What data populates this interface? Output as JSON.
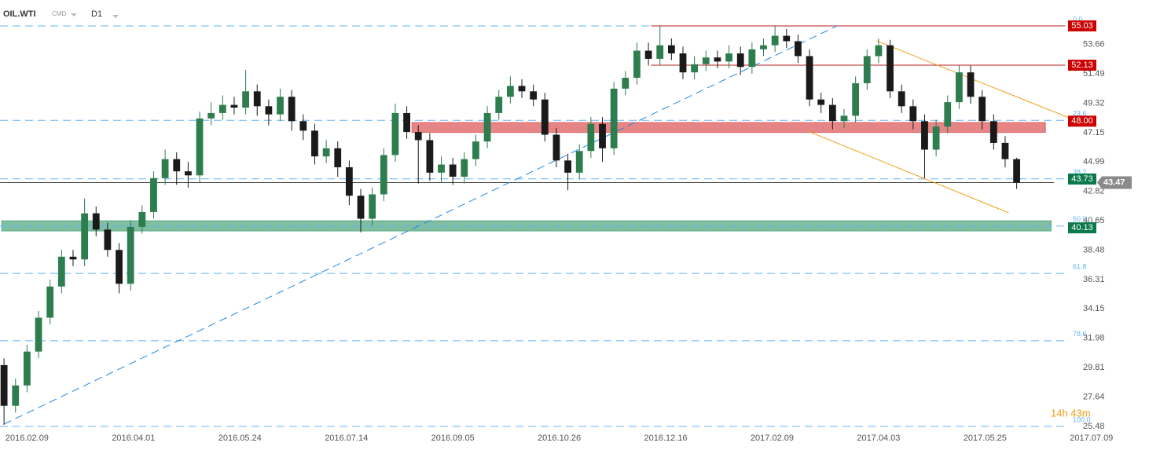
{
  "chart_data": {
    "type": "candlestick",
    "symbol": "OIL.WTI",
    "market": "CMD",
    "timeframe": "D1",
    "countdown": "14h 43m",
    "up_color": "#2e7d4f",
    "down_color": "#1a1a1a",
    "x": [
      0,
      4,
      8,
      12,
      16,
      20,
      24,
      28,
      32,
      36,
      40,
      44,
      48,
      52,
      56,
      60,
      64,
      68,
      72,
      76,
      80,
      84,
      88,
      92,
      96,
      100,
      104,
      108,
      112,
      116,
      120,
      124,
      128,
      132,
      136,
      140,
      144,
      148,
      152,
      156,
      160,
      164,
      168,
      172,
      176,
      180,
      184,
      188,
      192,
      196,
      200,
      204,
      208,
      212,
      216,
      220,
      224,
      228,
      232,
      236,
      240,
      244,
      248,
      252,
      256,
      260,
      264,
      268,
      272,
      276,
      280,
      284,
      288,
      292,
      296,
      300,
      304,
      308,
      312,
      316,
      320,
      324,
      328,
      332,
      336,
      340,
      344,
      348,
      352
    ],
    "open": [
      30.0,
      27.0,
      28.5,
      31.0,
      33.5,
      35.8,
      38.0,
      37.8,
      41.2,
      40.0,
      38.5,
      36.0,
      40.2,
      41.3,
      43.8,
      45.2,
      44.3,
      44.0,
      48.2,
      48.6,
      49.2,
      49.0,
      50.2,
      49.1,
      48.5,
      49.8,
      48.0,
      47.3,
      45.4,
      46.0,
      44.6,
      42.5,
      40.8,
      42.6,
      45.5,
      48.6,
      47.2,
      46.6,
      44.2,
      44.8,
      43.9,
      45.2,
      46.5,
      48.6,
      49.8,
      50.6,
      50.2,
      49.6,
      47.0,
      45.1,
      44.2,
      45.8,
      47.8,
      46.0,
      50.4,
      51.2,
      53.2,
      52.6,
      53.6,
      53.0,
      51.6,
      52.2,
      52.7,
      52.4,
      53.0,
      52.0,
      53.3,
      53.6,
      54.3,
      53.9,
      52.8,
      49.6,
      49.2,
      48.0,
      48.4,
      50.8,
      52.8,
      53.6,
      50.2,
      49.1,
      48.0,
      45.9,
      47.6,
      49.4,
      51.6,
      49.8,
      48.0,
      46.4,
      45.2
    ],
    "high": [
      30.5,
      29.0,
      31.5,
      34.0,
      36.3,
      38.5,
      38.5,
      42.3,
      41.7,
      40.5,
      39.0,
      40.7,
      41.8,
      44.3,
      45.9,
      45.7,
      45.0,
      48.7,
      49.4,
      49.9,
      49.8,
      51.8,
      50.7,
      49.6,
      50.4,
      50.3,
      48.5,
      47.8,
      46.6,
      46.5,
      45.1,
      43.0,
      43.1,
      46.0,
      49.3,
      49.1,
      47.7,
      47.1,
      45.4,
      45.3,
      45.7,
      47.0,
      49.1,
      50.3,
      51.3,
      51.1,
      50.7,
      50.1,
      47.5,
      45.6,
      46.3,
      48.3,
      48.3,
      50.9,
      51.7,
      53.8,
      53.8,
      55.0,
      54.1,
      53.5,
      52.8,
      53.2,
      53.2,
      53.6,
      53.5,
      53.8,
      54.1,
      55.0,
      54.8,
      54.4,
      53.3,
      50.1,
      49.7,
      48.9,
      51.3,
      53.3,
      54.1,
      54.0,
      50.7,
      49.6,
      48.5,
      48.1,
      49.9,
      52.1,
      52.1,
      50.3,
      48.5,
      46.9,
      45.3
    ],
    "low": [
      25.6,
      26.5,
      28.0,
      30.5,
      33.0,
      35.3,
      37.3,
      37.3,
      39.5,
      38.0,
      35.3,
      35.5,
      39.7,
      40.8,
      43.3,
      43.3,
      43.1,
      43.5,
      47.7,
      48.1,
      48.5,
      48.5,
      48.4,
      47.7,
      48.0,
      47.3,
      46.6,
      44.8,
      44.9,
      43.9,
      41.8,
      39.8,
      40.3,
      42.1,
      45.0,
      46.7,
      43.4,
      43.6,
      43.5,
      43.3,
      43.4,
      44.7,
      46.0,
      48.1,
      49.3,
      49.7,
      49.1,
      46.5,
      44.6,
      42.9,
      43.7,
      45.3,
      45.0,
      45.5,
      49.9,
      50.7,
      52.1,
      52.1,
      52.5,
      51.1,
      51.1,
      51.7,
      51.9,
      51.9,
      51.4,
      51.5,
      52.8,
      53.1,
      53.4,
      52.3,
      49.1,
      48.6,
      47.4,
      47.5,
      47.9,
      50.3,
      52.3,
      49.7,
      48.6,
      47.4,
      43.8,
      45.4,
      47.1,
      48.9,
      49.3,
      47.4,
      45.9,
      44.6,
      43.0
    ],
    "close": [
      27.0,
      28.5,
      31.0,
      33.5,
      35.8,
      38.0,
      37.8,
      41.2,
      40.0,
      38.5,
      36.0,
      40.2,
      41.3,
      43.8,
      45.2,
      44.3,
      44.0,
      48.2,
      48.6,
      49.2,
      49.0,
      50.2,
      49.1,
      48.5,
      49.8,
      48.0,
      47.3,
      45.4,
      46.0,
      44.6,
      42.5,
      40.8,
      42.6,
      45.5,
      48.6,
      47.2,
      46.6,
      44.2,
      44.8,
      43.9,
      45.2,
      46.5,
      48.6,
      49.8,
      50.6,
      50.2,
      49.6,
      47.0,
      45.1,
      44.2,
      45.8,
      47.8,
      46.0,
      50.4,
      51.2,
      53.2,
      52.6,
      53.6,
      53.0,
      51.6,
      52.2,
      52.7,
      52.4,
      53.0,
      52.0,
      53.3,
      53.6,
      54.3,
      53.9,
      52.8,
      49.6,
      49.2,
      48.0,
      48.4,
      50.8,
      52.8,
      53.6,
      50.2,
      49.1,
      48.0,
      45.9,
      47.6,
      49.4,
      51.6,
      49.8,
      48.0,
      46.4,
      45.2,
      43.47
    ],
    "xlim": [
      -1.4,
      398
    ],
    "ylim": [
      25.36,
      56.94
    ],
    "xticks": [
      {
        "value": 8,
        "label": "2016.02.09"
      },
      {
        "value": 45,
        "label": "2016.04.01"
      },
      {
        "value": 82,
        "label": "2016.05.24"
      },
      {
        "value": 119,
        "label": "2016.07.14"
      },
      {
        "value": 156,
        "label": "2016.09.05"
      },
      {
        "value": 193,
        "label": "2016.10.26"
      },
      {
        "value": 230,
        "label": "2016.12.16"
      },
      {
        "value": 267,
        "label": "2017.02.09"
      },
      {
        "value": 304,
        "label": "2017.04.03"
      },
      {
        "value": 341,
        "label": "2017.05.25"
      },
      {
        "value": 378,
        "label": "2017.07.09"
      }
    ],
    "yticks": [
      53.66,
      51.49,
      49.32,
      47.15,
      44.99,
      42.82,
      40.65,
      38.48,
      36.31,
      34.15,
      31.98,
      29.81,
      27.64,
      25.48
    ],
    "fib_levels": [
      {
        "label": "0.0",
        "value": 55.03
      },
      {
        "label": "23.6",
        "value": 48.06
      },
      {
        "label": "38.2",
        "value": 43.74
      },
      {
        "label": "50.0",
        "value": 40.26
      },
      {
        "label": "61.8",
        "value": 36.77
      },
      {
        "label": "78.6",
        "value": 31.8
      },
      {
        "label": "100.0",
        "value": 25.48
      }
    ],
    "zones": [
      {
        "color": "#e06666",
        "x": [
          141.8,
          362
        ],
        "y": [
          47.17,
          47.9
        ]
      },
      {
        "color": "#5fae8a",
        "x": [
          -0.8,
          364
        ],
        "y": [
          39.9,
          40.65
        ]
      }
    ],
    "lines": [
      {
        "color": "#b71c1c",
        "x": [
          224.9,
          368.9
        ],
        "value": 55.03
      },
      {
        "color": "#b71c1c",
        "x": [
          224.9,
          368.9
        ],
        "value": 52.13
      },
      {
        "color": "#444444",
        "x": [
          -1.4,
          365
        ],
        "value": 43.47
      }
    ],
    "trendlines": [
      {
        "color": "#1e88e5",
        "x": [
          0,
          289.6
        ],
        "y": [
          25.65,
          55.03
        ]
      },
      {
        "color": "#f39c12",
        "x": [
          303.3,
          370.2
        ],
        "y": [
          53.93,
          48.25
        ]
      },
      {
        "color": "#f39c12",
        "x": [
          280,
          349.2
        ],
        "y": [
          47.21,
          41.24
        ]
      }
    ],
    "price_tags": [
      {
        "value": 55.03,
        "label": "55.03",
        "color": "#cc0000"
      },
      {
        "value": 52.13,
        "label": "52.13",
        "color": "#cc0000"
      },
      {
        "value": 48,
        "label": "48.00",
        "color": "#cc0000"
      },
      {
        "value": 43.73,
        "label": "43.73",
        "color": "#0b7a4b"
      },
      {
        "value": 40.13,
        "label": "40.13",
        "color": "#0b7a4b"
      }
    ],
    "current_price": {
      "value": 43.47,
      "label": "43.47",
      "color": "#8a8a8a"
    }
  }
}
